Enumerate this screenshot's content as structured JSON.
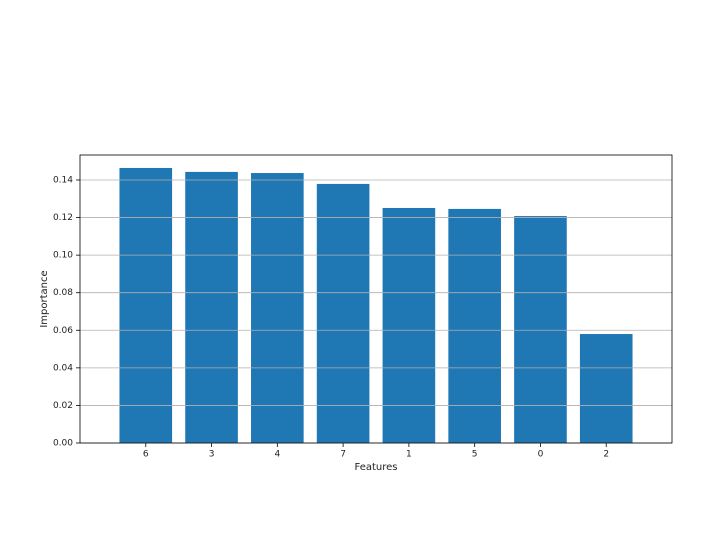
{
  "chart_data": {
    "type": "bar",
    "x_label": "Features",
    "y_label": "Importance",
    "categories": [
      "6",
      "3",
      "4",
      "7",
      "1",
      "5",
      "0",
      "2"
    ],
    "values": [
      0.1464,
      0.1443,
      0.1437,
      0.1379,
      0.1251,
      0.1246,
      0.1208,
      0.058
    ],
    "color": "#1f77b4",
    "ylim": [
      0,
      0.1533
    ],
    "yticks": [
      {
        "value": 0,
        "label": "0.00"
      },
      {
        "value": 0.02,
        "label": "0.02"
      },
      {
        "value": 0.04,
        "label": "0.04"
      },
      {
        "value": 0.06,
        "label": "0.06"
      },
      {
        "value": 0.08,
        "label": "0.08"
      },
      {
        "value": 0.1,
        "label": "0.10"
      },
      {
        "value": 0.12,
        "label": "0.12"
      },
      {
        "value": 0.14,
        "label": "0.14"
      }
    ],
    "grid": true
  }
}
